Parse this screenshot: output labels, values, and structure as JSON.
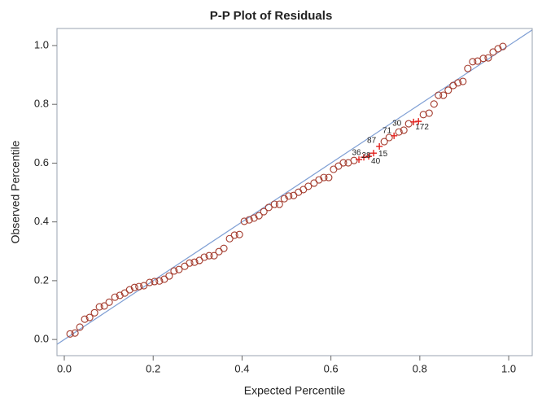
{
  "chart_data": {
    "type": "scatter",
    "title": "P-P Plot of Residuals",
    "x_label": "Expected Percentile",
    "y_label": "Observed Percentile",
    "xlim": [
      -0.0165,
      1.053
    ],
    "ylim": [
      -0.055,
      1.058
    ],
    "xticks": [
      {
        "value": 0,
        "label": "0.0"
      },
      {
        "value": 0.2,
        "label": "0.2"
      },
      {
        "value": 0.4,
        "label": "0.4"
      },
      {
        "value": 0.6,
        "label": "0.6"
      },
      {
        "value": 0.8,
        "label": "0.8"
      },
      {
        "value": 1,
        "label": "1.0"
      }
    ],
    "yticks": [
      {
        "value": 0,
        "label": "0.0"
      },
      {
        "value": 0.2,
        "label": "0.2"
      },
      {
        "value": 0.4,
        "label": "0.4"
      },
      {
        "value": 0.6,
        "label": "0.6"
      },
      {
        "value": 0.8,
        "label": "0.8"
      },
      {
        "value": 1,
        "label": "1.0"
      }
    ],
    "series": [
      {
        "marker": "circle",
        "color": "#a33a2c",
        "x": [
          0.013,
          0.024,
          0.035,
          0.046,
          0.057,
          0.068,
          0.079,
          0.09,
          0.101,
          0.114,
          0.125,
          0.136,
          0.147,
          0.158,
          0.168,
          0.179,
          0.192,
          0.203,
          0.214,
          0.225,
          0.236,
          0.247,
          0.258,
          0.271,
          0.282,
          0.293,
          0.304,
          0.315,
          0.326,
          0.337,
          0.348,
          0.359,
          0.372,
          0.383,
          0.394,
          0.405,
          0.416,
          0.427,
          0.438,
          0.449,
          0.46,
          0.473,
          0.484,
          0.495,
          0.505,
          0.516,
          0.527,
          0.538,
          0.549,
          0.562,
          0.573,
          0.584,
          0.595,
          0.606,
          0.617,
          0.628,
          0.639,
          0.652,
          0.72,
          0.731,
          0.753,
          0.764,
          0.775,
          0.808,
          0.821,
          0.832,
          0.842,
          0.853,
          0.864,
          0.875,
          0.886,
          0.897,
          0.908,
          0.919,
          0.93,
          0.943,
          0.954,
          0.965,
          0.976,
          0.987
        ],
        "values": [
          0.019,
          0.022,
          0.042,
          0.069,
          0.075,
          0.091,
          0.111,
          0.114,
          0.127,
          0.144,
          0.15,
          0.158,
          0.169,
          0.177,
          0.18,
          0.183,
          0.194,
          0.197,
          0.199,
          0.205,
          0.216,
          0.233,
          0.238,
          0.249,
          0.26,
          0.263,
          0.269,
          0.28,
          0.285,
          0.285,
          0.299,
          0.31,
          0.343,
          0.355,
          0.357,
          0.402,
          0.407,
          0.413,
          0.421,
          0.435,
          0.449,
          0.46,
          0.46,
          0.479,
          0.488,
          0.49,
          0.501,
          0.51,
          0.521,
          0.532,
          0.543,
          0.551,
          0.551,
          0.579,
          0.59,
          0.601,
          0.601,
          0.609,
          0.673,
          0.687,
          0.706,
          0.712,
          0.734,
          0.765,
          0.77,
          0.801,
          0.831,
          0.831,
          0.848,
          0.864,
          0.873,
          0.878,
          0.922,
          0.945,
          0.947,
          0.956,
          0.958,
          0.978,
          0.989,
          0.997
        ]
      },
      {
        "marker": "plus",
        "color": "#e3211c",
        "x": [
          0.663,
          0.674,
          0.685,
          0.696,
          0.709,
          0.742,
          0.786,
          0.797
        ],
        "values": [
          0.612,
          0.62,
          0.623,
          0.634,
          0.657,
          0.693,
          0.74,
          0.742
        ],
        "point_labels": [
          "36",
          "28",
          "40",
          "15",
          "87",
          "71",
          "30",
          "172"
        ]
      }
    ]
  }
}
